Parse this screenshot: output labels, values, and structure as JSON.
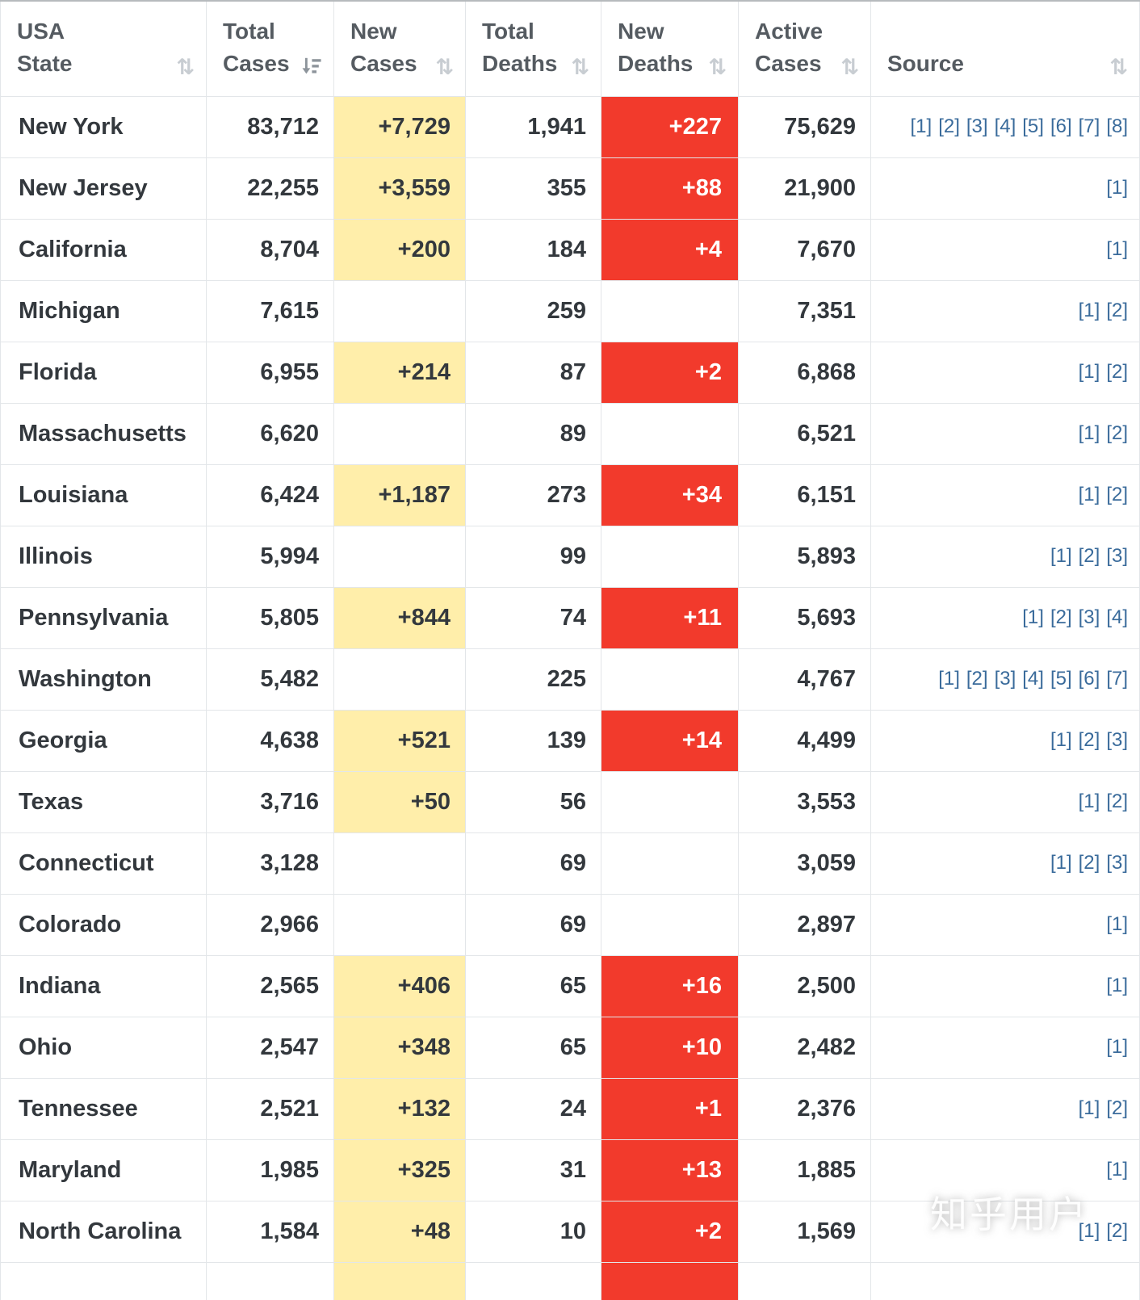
{
  "colors": {
    "new_cases_bg": "#FFEEAA",
    "new_deaths_bg": "#f23a2c",
    "link_blue": "#3a6b9b",
    "header_text": "#555b61",
    "body_text": "#33383d"
  },
  "watermark": "知乎用户",
  "table": {
    "columns": [
      {
        "label": "USA\nState",
        "sort_icon": "⇅",
        "sorted": ""
      },
      {
        "label": "Total\nCases",
        "sort_icon": "",
        "sorted": "desc"
      },
      {
        "label": "New\nCases",
        "sort_icon": "⇅",
        "sorted": ""
      },
      {
        "label": "Total\nDeaths",
        "sort_icon": "⇅",
        "sorted": ""
      },
      {
        "label": "New\nDeaths",
        "sort_icon": "⇅",
        "sorted": ""
      },
      {
        "label": "Active\nCases",
        "sort_icon": "⇅",
        "sorted": ""
      },
      {
        "label": "Source",
        "sort_icon": "⇅",
        "sorted": ""
      }
    ],
    "rows": [
      {
        "state": "New York",
        "total_cases": "83,712",
        "new_cases": "+7,729",
        "total_deaths": "1,941",
        "new_deaths": "+227",
        "active_cases": "75,629",
        "sources": [
          "[1]",
          "[2]",
          "[3]",
          "[4]",
          "[5]",
          "[6]",
          "[7]",
          "[8]"
        ]
      },
      {
        "state": "New Jersey",
        "total_cases": "22,255",
        "new_cases": "+3,559",
        "total_deaths": "355",
        "new_deaths": "+88",
        "active_cases": "21,900",
        "sources": [
          "[1]"
        ]
      },
      {
        "state": "California",
        "total_cases": "8,704",
        "new_cases": "+200",
        "total_deaths": "184",
        "new_deaths": "+4",
        "active_cases": "7,670",
        "sources": [
          "[1]"
        ]
      },
      {
        "state": "Michigan",
        "total_cases": "7,615",
        "new_cases": "",
        "total_deaths": "259",
        "new_deaths": "",
        "active_cases": "7,351",
        "sources": [
          "[1]",
          "[2]"
        ]
      },
      {
        "state": "Florida",
        "total_cases": "6,955",
        "new_cases": "+214",
        "total_deaths": "87",
        "new_deaths": "+2",
        "active_cases": "6,868",
        "sources": [
          "[1]",
          "[2]"
        ]
      },
      {
        "state": "Massachusetts",
        "total_cases": "6,620",
        "new_cases": "",
        "total_deaths": "89",
        "new_deaths": "",
        "active_cases": "6,521",
        "sources": [
          "[1]",
          "[2]"
        ]
      },
      {
        "state": "Louisiana",
        "total_cases": "6,424",
        "new_cases": "+1,187",
        "total_deaths": "273",
        "new_deaths": "+34",
        "active_cases": "6,151",
        "sources": [
          "[1]",
          "[2]"
        ]
      },
      {
        "state": "Illinois",
        "total_cases": "5,994",
        "new_cases": "",
        "total_deaths": "99",
        "new_deaths": "",
        "active_cases": "5,893",
        "sources": [
          "[1]",
          "[2]",
          "[3]"
        ]
      },
      {
        "state": "Pennsylvania",
        "total_cases": "5,805",
        "new_cases": "+844",
        "total_deaths": "74",
        "new_deaths": "+11",
        "active_cases": "5,693",
        "sources": [
          "[1]",
          "[2]",
          "[3]",
          "[4]"
        ]
      },
      {
        "state": "Washington",
        "total_cases": "5,482",
        "new_cases": "",
        "total_deaths": "225",
        "new_deaths": "",
        "active_cases": "4,767",
        "sources": [
          "[1]",
          "[2]",
          "[3]",
          "[4]",
          "[5]",
          "[6]",
          "[7]"
        ]
      },
      {
        "state": "Georgia",
        "total_cases": "4,638",
        "new_cases": "+521",
        "total_deaths": "139",
        "new_deaths": "+14",
        "active_cases": "4,499",
        "sources": [
          "[1]",
          "[2]",
          "[3]"
        ]
      },
      {
        "state": "Texas",
        "total_cases": "3,716",
        "new_cases": "+50",
        "total_deaths": "56",
        "new_deaths": "",
        "active_cases": "3,553",
        "sources": [
          "[1]",
          "[2]"
        ]
      },
      {
        "state": "Connecticut",
        "total_cases": "3,128",
        "new_cases": "",
        "total_deaths": "69",
        "new_deaths": "",
        "active_cases": "3,059",
        "sources": [
          "[1]",
          "[2]",
          "[3]"
        ]
      },
      {
        "state": "Colorado",
        "total_cases": "2,966",
        "new_cases": "",
        "total_deaths": "69",
        "new_deaths": "",
        "active_cases": "2,897",
        "sources": [
          "[1]"
        ]
      },
      {
        "state": "Indiana",
        "total_cases": "2,565",
        "new_cases": "+406",
        "total_deaths": "65",
        "new_deaths": "+16",
        "active_cases": "2,500",
        "sources": [
          "[1]"
        ]
      },
      {
        "state": "Ohio",
        "total_cases": "2,547",
        "new_cases": "+348",
        "total_deaths": "65",
        "new_deaths": "+10",
        "active_cases": "2,482",
        "sources": [
          "[1]"
        ]
      },
      {
        "state": "Tennessee",
        "total_cases": "2,521",
        "new_cases": "+132",
        "total_deaths": "24",
        "new_deaths": "+1",
        "active_cases": "2,376",
        "sources": [
          "[1]",
          "[2]"
        ]
      },
      {
        "state": "Maryland",
        "total_cases": "1,985",
        "new_cases": "+325",
        "total_deaths": "31",
        "new_deaths": "+13",
        "active_cases": "1,885",
        "sources": [
          "[1]"
        ]
      },
      {
        "state": "North Carolina",
        "total_cases": "1,584",
        "new_cases": "+48",
        "total_deaths": "10",
        "new_deaths": "+2",
        "active_cases": "1,569",
        "sources": [
          "[1]",
          "[2]"
        ]
      },
      {
        "state": "",
        "total_cases": "",
        "new_cases": " ",
        "total_deaths": "",
        "new_deaths": " ",
        "active_cases": "",
        "sources": []
      }
    ]
  }
}
